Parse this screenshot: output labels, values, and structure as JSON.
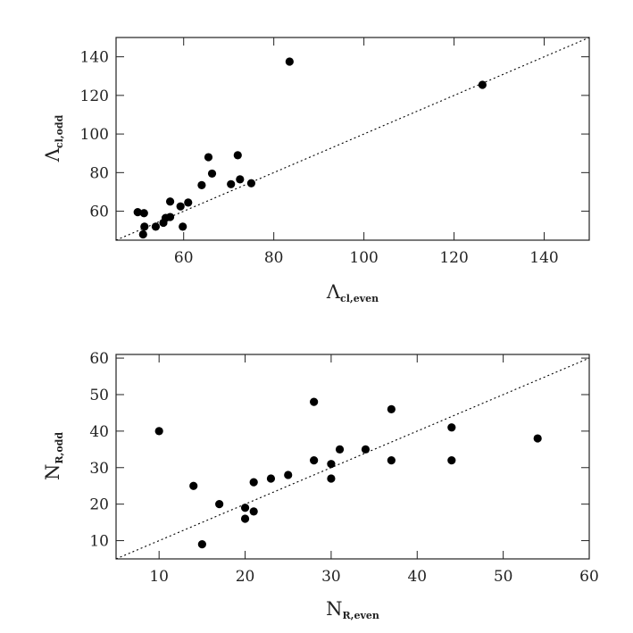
{
  "chart_data": [
    {
      "type": "scatter",
      "xlabel": "Λ",
      "xlabel_sub": "cl,even",
      "ylabel": "Λ",
      "ylabel_sub": "cl,odd",
      "xlim": [
        45,
        150
      ],
      "ylim": [
        45,
        150
      ],
      "x_ticks": [
        60,
        80,
        100,
        120,
        140
      ],
      "y_ticks": [
        60,
        80,
        100,
        120,
        140
      ],
      "reference_line": "y = x (dotted)",
      "points": [
        {
          "x": 49.8,
          "y": 59.5
        },
        {
          "x": 51.2,
          "y": 59.0
        },
        {
          "x": 51.3,
          "y": 52.0
        },
        {
          "x": 51.0,
          "y": 48.0
        },
        {
          "x": 53.8,
          "y": 52.0
        },
        {
          "x": 55.5,
          "y": 54.0
        },
        {
          "x": 56.0,
          "y": 56.5
        },
        {
          "x": 57.0,
          "y": 57.0
        },
        {
          "x": 57.0,
          "y": 65.0
        },
        {
          "x": 59.3,
          "y": 62.5
        },
        {
          "x": 59.8,
          "y": 52.0
        },
        {
          "x": 61.0,
          "y": 64.5
        },
        {
          "x": 64.0,
          "y": 73.5
        },
        {
          "x": 65.5,
          "y": 88.0
        },
        {
          "x": 66.3,
          "y": 79.5
        },
        {
          "x": 70.5,
          "y": 74.0
        },
        {
          "x": 72.0,
          "y": 89.0
        },
        {
          "x": 72.5,
          "y": 76.5
        },
        {
          "x": 75.0,
          "y": 74.5
        },
        {
          "x": 83.5,
          "y": 137.5
        },
        {
          "x": 126.3,
          "y": 125.5
        }
      ]
    },
    {
      "type": "scatter",
      "xlabel": "N",
      "xlabel_sub": "R,even",
      "ylabel": "N",
      "ylabel_sub": "R,odd",
      "xlim": [
        5,
        60
      ],
      "ylim": [
        5,
        61
      ],
      "x_ticks": [
        10,
        20,
        30,
        40,
        50,
        60
      ],
      "y_ticks": [
        10,
        20,
        30,
        40,
        50,
        60
      ],
      "reference_line": "y = x (dotted)",
      "points": [
        {
          "x": 10,
          "y": 40
        },
        {
          "x": 14,
          "y": 25
        },
        {
          "x": 15,
          "y": 9
        },
        {
          "x": 17,
          "y": 20
        },
        {
          "x": 20,
          "y": 19
        },
        {
          "x": 20,
          "y": 16
        },
        {
          "x": 21,
          "y": 26
        },
        {
          "x": 21,
          "y": 18
        },
        {
          "x": 23,
          "y": 27
        },
        {
          "x": 25,
          "y": 28
        },
        {
          "x": 28,
          "y": 48
        },
        {
          "x": 28,
          "y": 32
        },
        {
          "x": 30,
          "y": 31
        },
        {
          "x": 30,
          "y": 27
        },
        {
          "x": 31,
          "y": 35
        },
        {
          "x": 34,
          "y": 35
        },
        {
          "x": 37,
          "y": 46
        },
        {
          "x": 37,
          "y": 32
        },
        {
          "x": 44,
          "y": 41
        },
        {
          "x": 44,
          "y": 32
        },
        {
          "x": 54,
          "y": 38
        }
      ]
    }
  ]
}
